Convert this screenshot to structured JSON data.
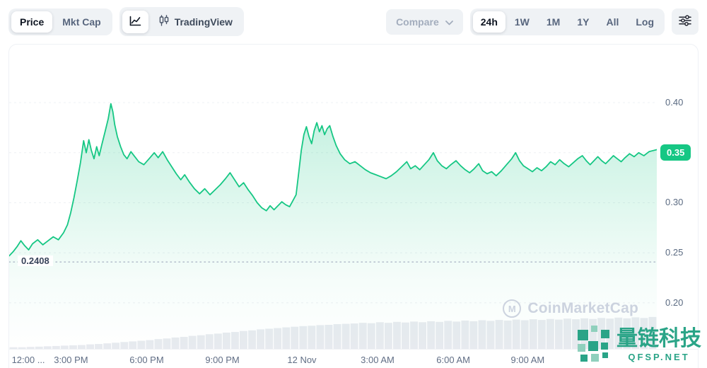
{
  "toolbar": {
    "price": "Price",
    "mkt_cap": "Mkt Cap",
    "tradingview": "TradingView",
    "compare": "Compare",
    "ranges": [
      "24h",
      "1W",
      "1M",
      "1Y",
      "All",
      "Log"
    ],
    "active_range": "24h"
  },
  "chart_data": {
    "type": "area",
    "title": "",
    "line_color": "#16c784",
    "volume_color": "#e7eaef",
    "grid_color": "#edf0f4",
    "y_range": [
      0.154,
      0.458
    ],
    "y_ticks": [
      {
        "label": "0.40",
        "value": 0.4
      },
      {
        "label": "0.35",
        "value": 0.35
      },
      {
        "label": "0.30",
        "value": 0.3
      },
      {
        "label": "0.25",
        "value": 0.25
      },
      {
        "label": "0.20",
        "value": 0.2
      }
    ],
    "low": {
      "label": "0.2408",
      "value": 0.2408
    },
    "current": {
      "label": "0.35",
      "value": 0.35
    },
    "x_ticks": [
      {
        "label": "12:00 ...",
        "pos": 0.004
      },
      {
        "label": "3:00 PM",
        "pos": 0.098
      },
      {
        "label": "6:00 PM",
        "pos": 0.218
      },
      {
        "label": "9:00 PM",
        "pos": 0.338
      },
      {
        "label": "12 Nov",
        "pos": 0.464
      },
      {
        "label": "3:00 AM",
        "pos": 0.584
      },
      {
        "label": "6:00 AM",
        "pos": 0.704
      },
      {
        "label": "9:00 AM",
        "pos": 0.822
      }
    ],
    "points": [
      [
        0.0,
        0.247
      ],
      [
        0.006,
        0.251
      ],
      [
        0.012,
        0.256
      ],
      [
        0.018,
        0.262
      ],
      [
        0.024,
        0.257
      ],
      [
        0.03,
        0.253
      ],
      [
        0.036,
        0.259
      ],
      [
        0.044,
        0.263
      ],
      [
        0.052,
        0.258
      ],
      [
        0.06,
        0.262
      ],
      [
        0.068,
        0.266
      ],
      [
        0.076,
        0.263
      ],
      [
        0.084,
        0.27
      ],
      [
        0.09,
        0.278
      ],
      [
        0.095,
        0.29
      ],
      [
        0.1,
        0.305
      ],
      [
        0.105,
        0.322
      ],
      [
        0.11,
        0.34
      ],
      [
        0.115,
        0.362
      ],
      [
        0.119,
        0.35
      ],
      [
        0.123,
        0.363
      ],
      [
        0.127,
        0.352
      ],
      [
        0.131,
        0.344
      ],
      [
        0.135,
        0.356
      ],
      [
        0.139,
        0.347
      ],
      [
        0.143,
        0.358
      ],
      [
        0.148,
        0.371
      ],
      [
        0.153,
        0.384
      ],
      [
        0.157,
        0.399
      ],
      [
        0.16,
        0.391
      ],
      [
        0.163,
        0.378
      ],
      [
        0.167,
        0.366
      ],
      [
        0.172,
        0.356
      ],
      [
        0.177,
        0.348
      ],
      [
        0.182,
        0.344
      ],
      [
        0.188,
        0.351
      ],
      [
        0.194,
        0.346
      ],
      [
        0.2,
        0.341
      ],
      [
        0.208,
        0.338
      ],
      [
        0.216,
        0.344
      ],
      [
        0.224,
        0.35
      ],
      [
        0.23,
        0.345
      ],
      [
        0.237,
        0.351
      ],
      [
        0.244,
        0.343
      ],
      [
        0.251,
        0.336
      ],
      [
        0.258,
        0.329
      ],
      [
        0.265,
        0.323
      ],
      [
        0.271,
        0.328
      ],
      [
        0.278,
        0.321
      ],
      [
        0.286,
        0.314
      ],
      [
        0.294,
        0.309
      ],
      [
        0.302,
        0.314
      ],
      [
        0.31,
        0.308
      ],
      [
        0.318,
        0.313
      ],
      [
        0.326,
        0.318
      ],
      [
        0.334,
        0.324
      ],
      [
        0.341,
        0.33
      ],
      [
        0.348,
        0.323
      ],
      [
        0.355,
        0.316
      ],
      [
        0.362,
        0.32
      ],
      [
        0.369,
        0.313
      ],
      [
        0.376,
        0.307
      ],
      [
        0.383,
        0.3
      ],
      [
        0.39,
        0.295
      ],
      [
        0.397,
        0.292
      ],
      [
        0.403,
        0.297
      ],
      [
        0.409,
        0.293
      ],
      [
        0.415,
        0.297
      ],
      [
        0.421,
        0.301
      ],
      [
        0.427,
        0.298
      ],
      [
        0.433,
        0.296
      ],
      [
        0.438,
        0.302
      ],
      [
        0.443,
        0.308
      ],
      [
        0.447,
        0.33
      ],
      [
        0.451,
        0.352
      ],
      [
        0.455,
        0.368
      ],
      [
        0.459,
        0.376
      ],
      [
        0.463,
        0.366
      ],
      [
        0.467,
        0.359
      ],
      [
        0.471,
        0.372
      ],
      [
        0.475,
        0.38
      ],
      [
        0.479,
        0.371
      ],
      [
        0.483,
        0.377
      ],
      [
        0.487,
        0.368
      ],
      [
        0.491,
        0.374
      ],
      [
        0.495,
        0.377
      ],
      [
        0.5,
        0.366
      ],
      [
        0.505,
        0.357
      ],
      [
        0.511,
        0.349
      ],
      [
        0.518,
        0.343
      ],
      [
        0.526,
        0.339
      ],
      [
        0.534,
        0.341
      ],
      [
        0.542,
        0.337
      ],
      [
        0.55,
        0.333
      ],
      [
        0.558,
        0.33
      ],
      [
        0.566,
        0.328
      ],
      [
        0.574,
        0.326
      ],
      [
        0.582,
        0.324
      ],
      [
        0.59,
        0.327
      ],
      [
        0.598,
        0.331
      ],
      [
        0.606,
        0.336
      ],
      [
        0.614,
        0.341
      ],
      [
        0.62,
        0.334
      ],
      [
        0.627,
        0.337
      ],
      [
        0.634,
        0.333
      ],
      [
        0.641,
        0.338
      ],
      [
        0.648,
        0.343
      ],
      [
        0.655,
        0.35
      ],
      [
        0.661,
        0.342
      ],
      [
        0.668,
        0.337
      ],
      [
        0.675,
        0.334
      ],
      [
        0.682,
        0.338
      ],
      [
        0.69,
        0.342
      ],
      [
        0.697,
        0.337
      ],
      [
        0.704,
        0.333
      ],
      [
        0.711,
        0.33
      ],
      [
        0.718,
        0.334
      ],
      [
        0.725,
        0.339
      ],
      [
        0.731,
        0.332
      ],
      [
        0.738,
        0.329
      ],
      [
        0.745,
        0.331
      ],
      [
        0.752,
        0.327
      ],
      [
        0.76,
        0.332
      ],
      [
        0.768,
        0.338
      ],
      [
        0.776,
        0.344
      ],
      [
        0.782,
        0.35
      ],
      [
        0.788,
        0.342
      ],
      [
        0.794,
        0.337
      ],
      [
        0.801,
        0.334
      ],
      [
        0.808,
        0.331
      ],
      [
        0.815,
        0.335
      ],
      [
        0.822,
        0.332
      ],
      [
        0.829,
        0.336
      ],
      [
        0.836,
        0.341
      ],
      [
        0.843,
        0.338
      ],
      [
        0.85,
        0.343
      ],
      [
        0.857,
        0.339
      ],
      [
        0.864,
        0.336
      ],
      [
        0.871,
        0.34
      ],
      [
        0.878,
        0.344
      ],
      [
        0.885,
        0.347
      ],
      [
        0.891,
        0.342
      ],
      [
        0.897,
        0.338
      ],
      [
        0.903,
        0.342
      ],
      [
        0.909,
        0.346
      ],
      [
        0.915,
        0.342
      ],
      [
        0.921,
        0.339
      ],
      [
        0.927,
        0.343
      ],
      [
        0.933,
        0.347
      ],
      [
        0.939,
        0.344
      ],
      [
        0.945,
        0.341
      ],
      [
        0.951,
        0.345
      ],
      [
        0.958,
        0.349
      ],
      [
        0.965,
        0.346
      ],
      [
        0.972,
        0.35
      ],
      [
        0.98,
        0.347
      ],
      [
        0.988,
        0.351
      ],
      [
        1.0,
        0.353
      ]
    ],
    "volume": [
      0.05,
      0.05,
      0.06,
      0.07,
      0.08,
      0.09,
      0.1,
      0.11,
      0.12,
      0.14,
      0.15,
      0.17,
      0.19,
      0.21,
      0.23,
      0.25,
      0.27,
      0.3,
      0.32,
      0.35,
      0.37,
      0.4,
      0.42,
      0.45,
      0.47,
      0.5,
      0.52,
      0.55,
      0.57,
      0.6,
      0.62,
      0.64,
      0.66,
      0.68,
      0.7,
      0.71,
      0.73,
      0.74,
      0.76,
      0.77,
      0.78,
      0.8,
      0.79,
      0.82,
      0.8,
      0.83,
      0.81,
      0.84,
      0.82,
      0.85,
      0.83,
      0.86,
      0.84,
      0.87,
      0.85,
      0.88,
      0.86,
      0.89,
      0.87,
      0.9,
      0.88,
      0.91,
      0.89,
      0.92,
      0.9,
      0.93,
      0.91,
      0.94,
      0.92,
      0.95,
      0.93,
      0.96,
      0.94,
      0.97,
      0.95,
      0.98
    ]
  },
  "watermark": {
    "coinmarketcap": "CoinMarketCap",
    "cmc_logo_letter": "M",
    "brand_name": "量链科技",
    "brand_site": "QFSP.NET",
    "brand_color": "#2aa487"
  }
}
